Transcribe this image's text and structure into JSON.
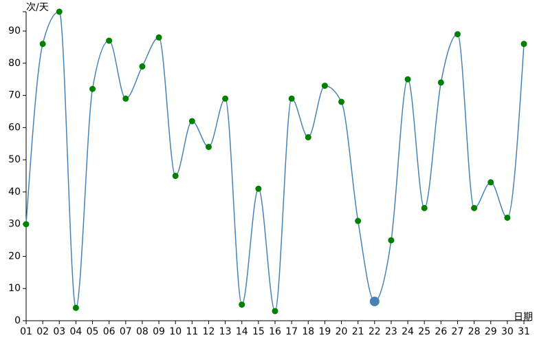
{
  "chart_data": {
    "type": "line",
    "y_label": "次/天",
    "x_label": "日期",
    "categories": [
      "01",
      "02",
      "03",
      "04",
      "05",
      "06",
      "07",
      "08",
      "09",
      "10",
      "11",
      "12",
      "13",
      "14",
      "15",
      "16",
      "17",
      "18",
      "19",
      "20",
      "21",
      "22",
      "23",
      "24",
      "25",
      "26",
      "27",
      "28",
      "29",
      "30",
      "31"
    ],
    "values": [
      30,
      86,
      96,
      4,
      72,
      87,
      69,
      79,
      88,
      45,
      62,
      54,
      69,
      5,
      41,
      3,
      69,
      57,
      73,
      68,
      31,
      6,
      25,
      75,
      35,
      74,
      89,
      35,
      43,
      32,
      86
    ],
    "color": "#4682b4",
    "marker_color": "#008000",
    "highlight": {
      "index": 21,
      "color": "#4682b4"
    },
    "ylim": [
      0,
      96
    ],
    "yticks": [
      0,
      10,
      20,
      30,
      40,
      50,
      60,
      70,
      80,
      90
    ],
    "smooth": true
  }
}
